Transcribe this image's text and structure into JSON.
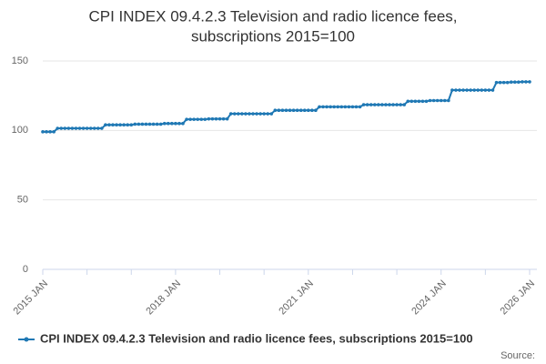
{
  "chart_data": {
    "type": "line",
    "title": [
      "CPI INDEX 09.4.2.3 Television and radio licence fees,",
      "subscriptions 2015=100"
    ],
    "source": "Source:",
    "categories": [
      "2015 JAN",
      null,
      null,
      null,
      null,
      null,
      null,
      null,
      null,
      null,
      null,
      null,
      null,
      null,
      null,
      null,
      null,
      null,
      null,
      null,
      null,
      null,
      null,
      null,
      null,
      null,
      null,
      null,
      null,
      null,
      null,
      null,
      null,
      null,
      null,
      null,
      "2018 JAN",
      null,
      null,
      null,
      null,
      null,
      null,
      null,
      null,
      null,
      null,
      null,
      null,
      null,
      null,
      null,
      null,
      null,
      null,
      null,
      null,
      null,
      null,
      null,
      null,
      null,
      null,
      null,
      null,
      null,
      null,
      null,
      null,
      null,
      null,
      null,
      "2021 JAN",
      null,
      null,
      null,
      null,
      null,
      null,
      null,
      null,
      null,
      null,
      null,
      null,
      null,
      null,
      null,
      null,
      null,
      null,
      null,
      null,
      null,
      null,
      null,
      null,
      null,
      null,
      null,
      null,
      null,
      null,
      null,
      null,
      null,
      null,
      null,
      "2024 JAN",
      null,
      null,
      null,
      null,
      null,
      null,
      null,
      null,
      null,
      null,
      null,
      null,
      null,
      null,
      null,
      null,
      null,
      null,
      null,
      null,
      null,
      null,
      null,
      "2026 JAN"
    ],
    "series": [
      {
        "name": "CPI INDEX 09.4.2.3 Television and radio licence fees, subscriptions 2015=100",
        "color": "#1f78b4",
        "values": [
          99,
          99,
          99,
          99,
          101.5,
          101.5,
          101.5,
          101.5,
          101.5,
          101.5,
          101.5,
          101.5,
          101.5,
          101.5,
          101.5,
          101.5,
          101.5,
          104,
          104,
          104,
          104,
          104,
          104,
          104,
          104,
          104.5,
          104.5,
          104.5,
          104.5,
          104.5,
          104.5,
          104.5,
          104.5,
          105,
          105,
          105,
          105,
          105,
          105,
          108,
          108,
          108,
          108,
          108,
          108,
          108.3,
          108.3,
          108.3,
          108.3,
          108.3,
          108.3,
          112,
          112,
          112,
          112,
          112,
          112,
          112,
          112,
          112,
          112,
          112,
          112,
          114.5,
          114.5,
          114.5,
          114.5,
          114.5,
          114.5,
          114.5,
          114.5,
          114.5,
          114.5,
          114.5,
          114.5,
          117,
          117,
          117,
          117,
          117,
          117,
          117,
          117,
          117,
          117,
          117,
          117,
          118.5,
          118.5,
          118.5,
          118.5,
          118.5,
          118.5,
          118.5,
          118.5,
          118.5,
          118.5,
          118.5,
          118.5,
          121,
          121,
          121,
          121,
          121,
          121,
          121.5,
          121.5,
          121.5,
          121.5,
          121.5,
          121.5,
          129,
          129,
          129,
          129,
          129,
          129,
          129,
          129,
          129,
          129,
          129,
          129,
          134.5,
          134.5,
          134.5,
          134.5,
          134.8,
          134.8,
          134.8,
          135,
          135,
          135
        ]
      }
    ],
    "ylim": [
      0,
      150
    ],
    "yticks": [
      0,
      50,
      100,
      150
    ],
    "grid": true
  }
}
